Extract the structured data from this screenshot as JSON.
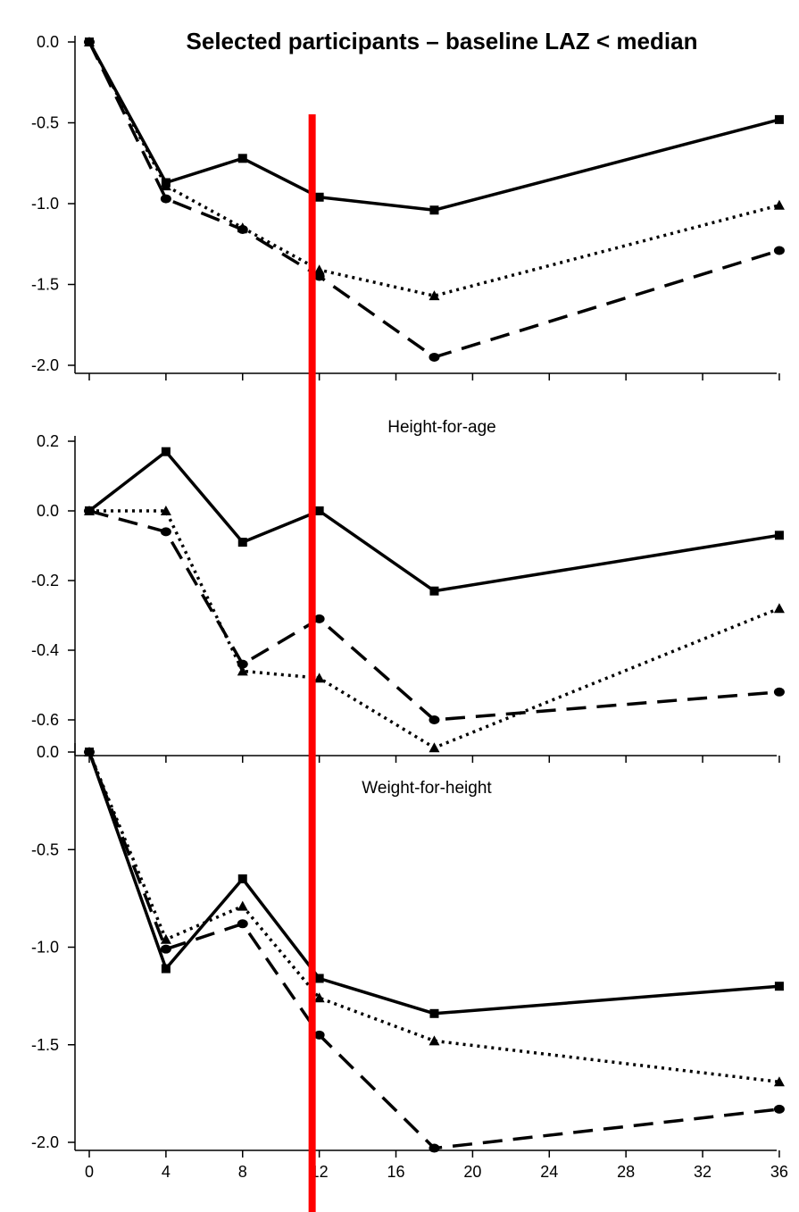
{
  "chart_data": [
    {
      "type": "line",
      "title": "Selected participants – baseline LAZ < median",
      "x": [
        0,
        4,
        8,
        12,
        18,
        36
      ],
      "ylim": [
        -2.0,
        0.0
      ],
      "yticks": [
        "0.0",
        "-0.5",
        "-1.0",
        "-1.5",
        "-2.0"
      ],
      "grid": false,
      "series": [
        {
          "values": [
            0.0,
            -0.87,
            -0.72,
            -0.96,
            -1.04,
            -0.48
          ],
          "line": "solid",
          "marker": "square"
        },
        {
          "values": [
            0.0,
            -0.89,
            -1.15,
            -1.41,
            -1.57,
            -1.01
          ],
          "line": "dotted",
          "marker": "triangle"
        },
        {
          "values": [
            0.0,
            -0.97,
            -1.16,
            -1.45,
            -1.95,
            -1.29
          ],
          "line": "dashed",
          "marker": "circle"
        }
      ]
    },
    {
      "type": "line",
      "title": "Height-for-age",
      "x": [
        0,
        4,
        8,
        12,
        18,
        36
      ],
      "ylim": [
        -0.7,
        0.2
      ],
      "yticks": [
        "0.2",
        "0.0",
        "-0.2",
        "-0.4",
        "-0.6"
      ],
      "grid": false,
      "series": [
        {
          "values": [
            0.0,
            0.17,
            -0.09,
            0.0,
            -0.23,
            -0.07
          ],
          "line": "solid",
          "marker": "square"
        },
        {
          "values": [
            0.0,
            0.0,
            -0.46,
            -0.48,
            -0.68,
            -0.28
          ],
          "line": "dotted",
          "marker": "triangle"
        },
        {
          "values": [
            0.0,
            -0.06,
            -0.44,
            -0.31,
            -0.6,
            -0.52
          ],
          "line": "dashed",
          "marker": "circle"
        }
      ]
    },
    {
      "type": "line",
      "title": "Weight-for-height",
      "x": [
        0,
        4,
        8,
        12,
        18,
        36
      ],
      "xticks": [
        "0",
        "4",
        "8",
        "12",
        "16",
        "20",
        "24",
        "28",
        "32",
        "36"
      ],
      "ylim": [
        -2.05,
        0.02
      ],
      "yticks": [
        "0.0",
        "-0.5",
        "-1.0",
        "-1.5",
        "-2.0"
      ],
      "grid": false,
      "series": [
        {
          "values": [
            0.0,
            -1.11,
            -0.65,
            -1.16,
            -1.34,
            -1.2
          ],
          "line": "solid",
          "marker": "square"
        },
        {
          "values": [
            0.0,
            -0.96,
            -0.79,
            -1.26,
            -1.48,
            -1.69
          ],
          "line": "dotted",
          "marker": "triangle"
        },
        {
          "values": [
            0.0,
            -1.01,
            -0.88,
            -1.45,
            -2.03,
            -1.83
          ],
          "line": "dashed",
          "marker": "circle"
        }
      ]
    }
  ],
  "annotation": {
    "type": "vertical-line",
    "x": 12,
    "color": "#ff0000"
  },
  "colors": {
    "series": "#000000",
    "marker_line": "#ff0000"
  }
}
